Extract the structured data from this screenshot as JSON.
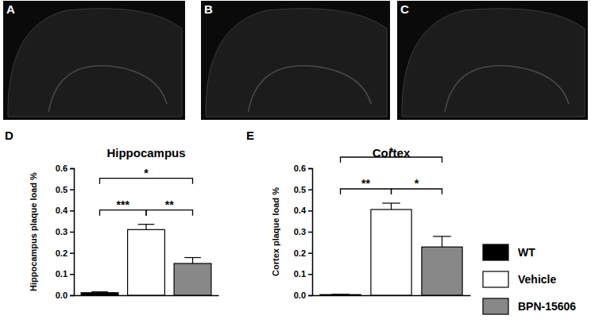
{
  "images": [
    {
      "panel": "A"
    },
    {
      "panel": "B"
    },
    {
      "panel": "C"
    }
  ],
  "chart_data": [
    {
      "type": "bar",
      "panel": "D",
      "title": "Hippocampus",
      "y_label": "Hippocampus plaque load %",
      "categories": [
        null
      ],
      "series": [
        {
          "name": "WT",
          "color": "#000000",
          "values": [
            0.012
          ],
          "errors": [
            0.004
          ]
        },
        {
          "name": "Vehicle",
          "color": "#ffffff",
          "values": [
            0.31
          ],
          "errors": [
            0.025
          ]
        },
        {
          "name": "BPN-15606",
          "color": "#888888",
          "values": [
            0.15
          ],
          "errors": [
            0.028
          ]
        }
      ],
      "ylim": [
        0,
        0.6
      ],
      "yticks": [
        {
          "value": 0,
          "label": "0.0"
        },
        0.1,
        0.2,
        0.3,
        0.4,
        0.5,
        0.6
      ],
      "annotations": [
        {
          "from": "WT",
          "to": "Vehicle",
          "label": "***"
        },
        {
          "from": "Vehicle",
          "to": "BPN-15606",
          "label": "**"
        },
        {
          "from": "WT",
          "to": "BPN-15606",
          "label": "*"
        }
      ]
    },
    {
      "type": "bar",
      "panel": "E",
      "title": "Cortex",
      "y_label": "Cortex plaque load %",
      "categories": [
        null
      ],
      "series": [
        {
          "name": "WT",
          "color": "#000000",
          "values": [
            0.003
          ],
          "errors": [
            0.001
          ]
        },
        {
          "name": "Vehicle",
          "color": "#ffffff",
          "values": [
            0.405
          ],
          "errors": [
            0.03
          ]
        },
        {
          "name": "BPN-15606",
          "color": "#888888",
          "values": [
            0.228
          ],
          "errors": [
            0.05
          ]
        }
      ],
      "ylim": [
        0,
        0.6
      ],
      "yticks": [
        {
          "value": 0,
          "label": "0.0"
        },
        0.1,
        0.2,
        0.3,
        0.4,
        0.5,
        0.6
      ],
      "annotations": [
        {
          "from": "WT",
          "to": "Vehicle",
          "label": "**"
        },
        {
          "from": "Vehicle",
          "to": "BPN-15606",
          "label": "*"
        },
        {
          "from": "WT",
          "to": "BPN-15606",
          "label": "*"
        }
      ],
      "legend": "right"
    }
  ]
}
